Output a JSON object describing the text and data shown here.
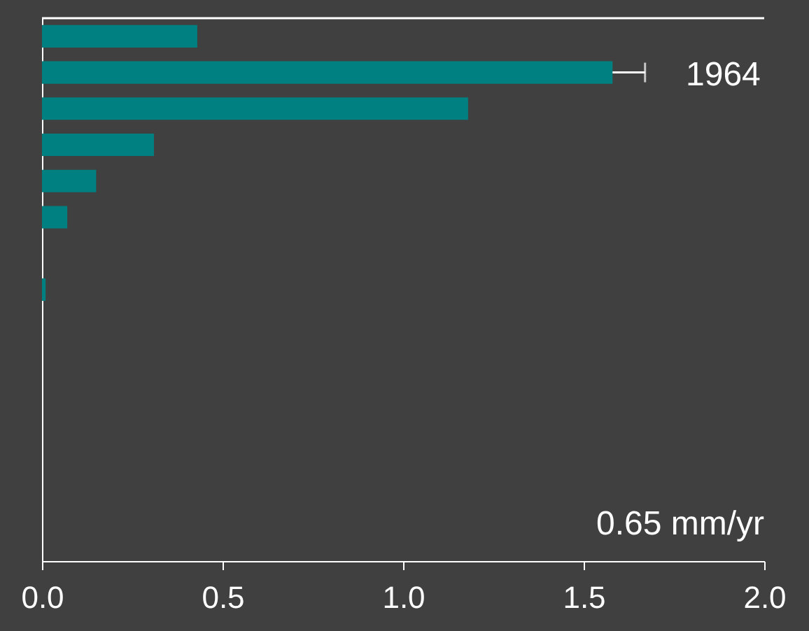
{
  "chart_data": {
    "type": "bar",
    "orientation": "horizontal",
    "categories": [
      null,
      null,
      null,
      null,
      null,
      null,
      null,
      null,
      null,
      null,
      null,
      null,
      null,
      null,
      null
    ],
    "values": [
      0.43,
      1.58,
      1.18,
      0.31,
      0.15,
      0.07,
      null,
      0.01,
      null,
      null,
      null,
      null,
      null,
      null,
      null
    ],
    "errors": [
      null,
      0.09,
      null,
      null,
      null,
      null,
      null,
      null,
      null,
      null,
      null,
      null,
      null,
      null,
      null
    ],
    "color": "#008080",
    "xlim": [
      0,
      2
    ],
    "xticks": [
      {
        "value": 0,
        "label": "0.0"
      },
      {
        "value": 0.5,
        "label": "0.5"
      },
      {
        "value": 1,
        "label": "1.0"
      },
      {
        "value": 1.5,
        "label": "1.5"
      },
      {
        "value": 2,
        "label": "2.0"
      }
    ],
    "annotations": [
      "1964",
      "0.65 mm/yr"
    ],
    "grid": false
  }
}
